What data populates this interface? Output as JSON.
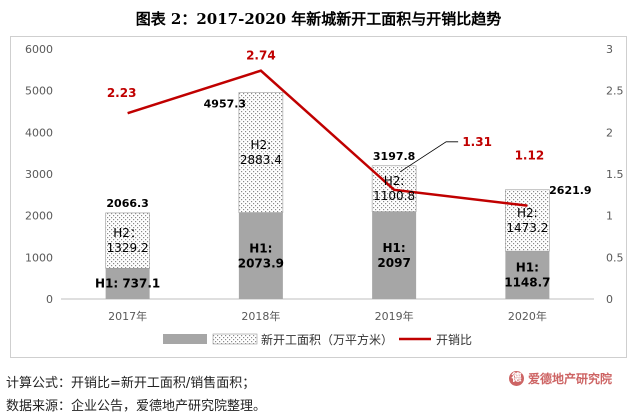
{
  "title": "图表 2：2017-2020 年新城新开工面积与开销比趋势",
  "chart_data": {
    "type": "bar",
    "categories": [
      "2017年",
      "2018年",
      "2019年",
      "2020年"
    ],
    "y_left": {
      "min": 0,
      "max": 6000,
      "step": 1000
    },
    "y_right": {
      "min": 0,
      "max": 3,
      "step": 0.5
    },
    "grid": false,
    "legend_position": "bottom",
    "series": [
      {
        "name": "新开工面积（万平方米）",
        "kind": "stacked-bar",
        "totals": [
          2066.3,
          4957.3,
          3197.8,
          2621.9
        ],
        "H1": [
          737.1,
          2073.9,
          2097,
          1148.7
        ],
        "H2": [
          1329.2,
          2883.4,
          1100.8,
          1473.2
        ],
        "total_labels": [
          "2066.3",
          "4957.3",
          "3197.8",
          "2621.9"
        ],
        "h1_labels": [
          "H1: 737.1",
          "H1:\n2073.9",
          "H1:\n2097",
          "H1:\n1148.7"
        ],
        "h2_labels": [
          "H2：\n1329.2",
          "H2:\n2883.4",
          "H2:\n1100.8",
          "H2:\n1473.2"
        ]
      },
      {
        "name": "开销比",
        "kind": "line",
        "axis": "right",
        "values": [
          2.23,
          2.74,
          1.31,
          1.12
        ],
        "labels": [
          "2.23",
          "2.74",
          "1.31",
          "1.12"
        ]
      }
    ],
    "colors": {
      "h1": "#a6a6a6",
      "line": "#c00000",
      "line_label": "#c00000"
    }
  },
  "watermark": {
    "text": "爱德地产研究院",
    "logo": "德"
  },
  "notes": {
    "line1": "计算公式：开销比=新开工面积/销售面积；",
    "line2": "数据来源：企业公告，爱德地产研究院整理。"
  }
}
